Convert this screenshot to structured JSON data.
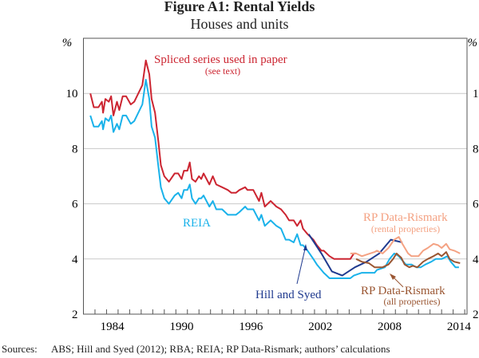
{
  "chart_data": {
    "type": "line",
    "title": "Figure A1: Rental Yields",
    "subtitle": "Houses and units",
    "ylabel_left": "%",
    "ylabel_right": "%",
    "xlim": [
      1982,
      2015.2
    ],
    "ylim": [
      2,
      12
    ],
    "yticks": [
      2,
      4,
      6,
      8,
      10
    ],
    "ytick_labels": [
      "2",
      "4",
      "6",
      "8",
      "10"
    ],
    "xticks": [
      1984,
      1990,
      1996,
      2002,
      2008,
      2014
    ],
    "xtick_labels": [
      "1984",
      "1990",
      "1996",
      "2002",
      "2008",
      "2014"
    ],
    "grid": "horizontal",
    "series": [
      {
        "name": "Spliced series used in paper",
        "sub": "(see text)",
        "color": "#cc2531",
        "points": [
          [
            1982.6,
            10.0
          ],
          [
            1982.9,
            9.5
          ],
          [
            1983.3,
            9.5
          ],
          [
            1983.6,
            9.7
          ],
          [
            1983.7,
            9.3
          ],
          [
            1983.9,
            9.8
          ],
          [
            1984.2,
            9.7
          ],
          [
            1984.4,
            9.9
          ],
          [
            1984.6,
            9.2
          ],
          [
            1984.9,
            9.7
          ],
          [
            1985.1,
            9.4
          ],
          [
            1985.4,
            9.9
          ],
          [
            1985.7,
            9.9
          ],
          [
            1986.1,
            9.6
          ],
          [
            1986.4,
            9.7
          ],
          [
            1987.1,
            10.3
          ],
          [
            1987.4,
            11.2
          ],
          [
            1987.7,
            10.7
          ],
          [
            1987.9,
            9.8
          ],
          [
            1988.2,
            9.3
          ],
          [
            1988.5,
            8.2
          ],
          [
            1988.7,
            7.4
          ],
          [
            1989.0,
            7.0
          ],
          [
            1989.4,
            6.8
          ],
          [
            1989.9,
            7.1
          ],
          [
            1990.2,
            7.1
          ],
          [
            1990.5,
            6.9
          ],
          [
            1990.7,
            7.2
          ],
          [
            1991.0,
            7.2
          ],
          [
            1991.2,
            7.5
          ],
          [
            1991.4,
            6.9
          ],
          [
            1991.7,
            6.8
          ],
          [
            1992.0,
            7.0
          ],
          [
            1992.2,
            6.9
          ],
          [
            1992.4,
            7.1
          ],
          [
            1992.9,
            6.7
          ],
          [
            1993.2,
            7.0
          ],
          [
            1993.5,
            6.7
          ],
          [
            1994.0,
            6.6
          ],
          [
            1994.5,
            6.5
          ],
          [
            1994.8,
            6.4
          ],
          [
            1995.2,
            6.4
          ],
          [
            1995.5,
            6.5
          ],
          [
            1996.0,
            6.6
          ],
          [
            1996.2,
            6.5
          ],
          [
            1996.7,
            6.5
          ],
          [
            1997.2,
            6.1
          ],
          [
            1997.4,
            6.4
          ],
          [
            1997.7,
            5.9
          ],
          [
            1998.2,
            6.1
          ],
          [
            1998.7,
            5.9
          ],
          [
            1999.1,
            5.8
          ],
          [
            1999.5,
            5.6
          ],
          [
            1999.8,
            5.4
          ],
          [
            2000.2,
            5.4
          ],
          [
            2000.5,
            5.2
          ],
          [
            2000.8,
            5.4
          ],
          [
            2001.0,
            5.1
          ],
          [
            2001.4,
            4.9
          ],
          [
            2001.9,
            4.7
          ],
          [
            2002.2,
            4.5
          ],
          [
            2002.6,
            4.3
          ],
          [
            2002.8,
            4.3
          ],
          [
            2003.3,
            4.1
          ],
          [
            2003.7,
            4.0
          ],
          [
            2004.2,
            4.0
          ],
          [
            2005.1,
            4.0
          ],
          [
            2005.4,
            4.2
          ],
          [
            2005.6,
            4.2
          ]
        ]
      },
      {
        "name": "REIA",
        "color": "#1ab2ea",
        "points": [
          [
            1982.6,
            9.2
          ],
          [
            1982.9,
            8.8
          ],
          [
            1983.3,
            8.8
          ],
          [
            1983.6,
            9.0
          ],
          [
            1983.7,
            8.7
          ],
          [
            1983.9,
            9.1
          ],
          [
            1984.2,
            9.0
          ],
          [
            1984.4,
            9.2
          ],
          [
            1984.6,
            8.6
          ],
          [
            1984.9,
            8.9
          ],
          [
            1985.1,
            8.7
          ],
          [
            1985.4,
            9.2
          ],
          [
            1985.7,
            9.2
          ],
          [
            1986.1,
            8.9
          ],
          [
            1986.4,
            9.0
          ],
          [
            1987.1,
            9.6
          ],
          [
            1987.4,
            10.5
          ],
          [
            1987.7,
            9.8
          ],
          [
            1987.9,
            8.8
          ],
          [
            1988.2,
            8.4
          ],
          [
            1988.5,
            7.3
          ],
          [
            1988.7,
            6.6
          ],
          [
            1989.0,
            6.2
          ],
          [
            1989.4,
            6.0
          ],
          [
            1989.9,
            6.3
          ],
          [
            1990.2,
            6.4
          ],
          [
            1990.5,
            6.2
          ],
          [
            1990.7,
            6.5
          ],
          [
            1991.0,
            6.5
          ],
          [
            1991.2,
            6.7
          ],
          [
            1991.4,
            6.2
          ],
          [
            1991.7,
            6.0
          ],
          [
            1992.0,
            6.2
          ],
          [
            1992.2,
            6.2
          ],
          [
            1992.4,
            6.3
          ],
          [
            1992.9,
            5.9
          ],
          [
            1993.2,
            6.1
          ],
          [
            1993.5,
            5.8
          ],
          [
            1994.0,
            5.8
          ],
          [
            1994.5,
            5.6
          ],
          [
            1994.8,
            5.6
          ],
          [
            1995.2,
            5.6
          ],
          [
            1995.5,
            5.7
          ],
          [
            1996.0,
            5.9
          ],
          [
            1996.2,
            5.8
          ],
          [
            1996.7,
            5.8
          ],
          [
            1997.2,
            5.4
          ],
          [
            1997.4,
            5.6
          ],
          [
            1997.7,
            5.2
          ],
          [
            1998.2,
            5.4
          ],
          [
            1998.7,
            5.2
          ],
          [
            1999.1,
            5.1
          ],
          [
            1999.5,
            4.7
          ],
          [
            1999.8,
            4.7
          ],
          [
            2000.2,
            4.6
          ],
          [
            2000.5,
            4.9
          ],
          [
            2000.8,
            4.5
          ],
          [
            2001.0,
            4.5
          ],
          [
            2001.4,
            4.3
          ],
          [
            2001.9,
            4.0
          ],
          [
            2002.2,
            3.8
          ],
          [
            2002.6,
            3.6
          ],
          [
            2002.8,
            3.5
          ],
          [
            2003.3,
            3.3
          ],
          [
            2003.7,
            3.3
          ],
          [
            2004.2,
            3.3
          ],
          [
            2005.1,
            3.3
          ],
          [
            2005.4,
            3.4
          ],
          [
            2006.1,
            3.5
          ],
          [
            2007.2,
            3.5
          ],
          [
            2007.4,
            3.6
          ],
          [
            2008.1,
            3.7
          ],
          [
            2008.5,
            4.0
          ],
          [
            2008.9,
            4.2
          ],
          [
            2009.3,
            4.1
          ],
          [
            2009.7,
            3.9
          ],
          [
            2009.9,
            3.8
          ],
          [
            2010.4,
            3.8
          ],
          [
            2010.8,
            3.7
          ],
          [
            2011.2,
            3.7
          ],
          [
            2011.6,
            3.8
          ],
          [
            2012.1,
            3.9
          ],
          [
            2012.5,
            4.0
          ],
          [
            2013.0,
            4.0
          ],
          [
            2013.5,
            4.1
          ],
          [
            2013.8,
            3.9
          ],
          [
            2014.2,
            3.7
          ],
          [
            2014.5,
            3.7
          ]
        ]
      },
      {
        "name": "Hill and Syed",
        "color": "#1f3a8f",
        "points": [
          [
            2001.5,
            4.9
          ],
          [
            2002.6,
            4.2
          ],
          [
            2003.5,
            3.55
          ],
          [
            2004.4,
            3.4
          ],
          [
            2005.5,
            3.7
          ],
          [
            2006.5,
            3.9
          ],
          [
            2007.6,
            4.2
          ],
          [
            2008.6,
            4.7
          ],
          [
            2009.6,
            4.6
          ]
        ]
      },
      {
        "name": "RP Data-Rismark",
        "sub": "(rental properties)",
        "color": "#f4a283",
        "points": [
          [
            2005.1,
            4.2
          ],
          [
            2005.6,
            4.2
          ],
          [
            2006.1,
            4.1
          ],
          [
            2006.8,
            4.2
          ],
          [
            2007.2,
            4.25
          ],
          [
            2007.4,
            4.3
          ],
          [
            2007.9,
            4.2
          ],
          [
            2008.4,
            4.4
          ],
          [
            2008.9,
            4.7
          ],
          [
            2009.3,
            4.8
          ],
          [
            2009.6,
            4.55
          ],
          [
            2010.1,
            4.2
          ],
          [
            2010.4,
            4.1
          ],
          [
            2011.0,
            4.1
          ],
          [
            2011.4,
            4.3
          ],
          [
            2011.8,
            4.4
          ],
          [
            2012.3,
            4.55
          ],
          [
            2012.7,
            4.5
          ],
          [
            2013.0,
            4.4
          ],
          [
            2013.4,
            4.55
          ],
          [
            2013.7,
            4.35
          ],
          [
            2014.1,
            4.3
          ],
          [
            2014.6,
            4.2
          ]
        ]
      },
      {
        "name": "RP Data-Rismark",
        "sub": "(all properties)",
        "color": "#9a5632",
        "points": [
          [
            2005.6,
            4.0
          ],
          [
            2006.1,
            3.9
          ],
          [
            2006.7,
            3.85
          ],
          [
            2007.2,
            3.7
          ],
          [
            2007.9,
            3.7
          ],
          [
            2008.4,
            3.8
          ],
          [
            2008.8,
            4.0
          ],
          [
            2009.1,
            4.2
          ],
          [
            2009.5,
            4.05
          ],
          [
            2009.8,
            3.8
          ],
          [
            2010.2,
            3.7
          ],
          [
            2010.5,
            3.75
          ],
          [
            2010.9,
            3.7
          ],
          [
            2011.4,
            3.9
          ],
          [
            2011.8,
            4.0
          ],
          [
            2012.3,
            4.1
          ],
          [
            2012.7,
            4.2
          ],
          [
            2013.0,
            4.1
          ],
          [
            2013.4,
            4.25
          ],
          [
            2013.7,
            4.0
          ],
          [
            2014.1,
            3.9
          ],
          [
            2014.6,
            3.85
          ]
        ]
      }
    ]
  },
  "sources": {
    "label": "Sources:",
    "text": "ABS; Hill and Syed (2012); RBA; REIA; RP Data-Rismark; authors’ calculations"
  }
}
